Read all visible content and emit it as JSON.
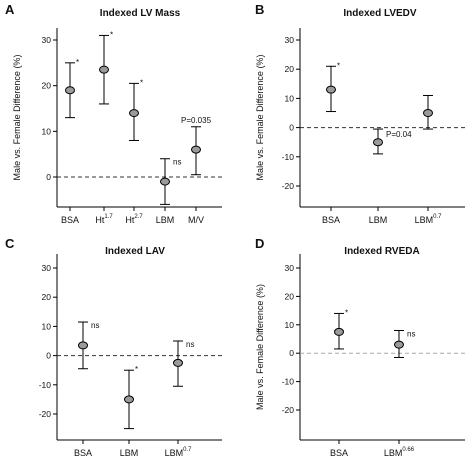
{
  "chart_data": [
    {
      "letter": "A",
      "title": "Indexed LV Mass",
      "type": "scatter",
      "ylabel": "Male vs. Female Difference (%)",
      "ylim": [
        -6,
        30
      ],
      "yticks": [
        0,
        10,
        20,
        30
      ],
      "categories": [
        {
          "label": "BSA",
          "sup": ""
        },
        {
          "label": "Ht",
          "sup": "1.7"
        },
        {
          "label": "Ht",
          "sup": "2.7"
        },
        {
          "label": "LBM",
          "sup": ""
        },
        {
          "label": "M/V",
          "sup": ""
        }
      ],
      "points": [
        {
          "y": 19,
          "low": 13,
          "high": 25,
          "ann": "*"
        },
        {
          "y": 23.5,
          "low": 16,
          "high": 31,
          "ann": "*"
        },
        {
          "y": 14,
          "low": 8,
          "high": 20.5,
          "ann": "*"
        },
        {
          "y": -1,
          "low": -6,
          "high": 4,
          "ann": "ns"
        },
        {
          "y": 6,
          "low": 0.5,
          "high": 11,
          "ann": "P=0.035"
        }
      ]
    },
    {
      "letter": "B",
      "title": "Indexed LVEDV",
      "type": "scatter",
      "ylabel": "Male vs. Female Difference (%)",
      "ylim": [
        -28,
        30
      ],
      "yticks": [
        -20,
        -10,
        0,
        10,
        20,
        30
      ],
      "categories": [
        {
          "label": "BSA",
          "sup": ""
        },
        {
          "label": "LBM",
          "sup": ""
        },
        {
          "label": "LBM",
          "sup": "0.7"
        }
      ],
      "points": [
        {
          "y": 13,
          "low": 5.5,
          "high": 21,
          "ann": "*"
        },
        {
          "y": -5,
          "low": -9,
          "high": -0.5,
          "ann": "P=0.04"
        },
        {
          "y": 5,
          "low": -0.5,
          "high": 11,
          "ann": ""
        }
      ]
    },
    {
      "letter": "C",
      "title": "Indexed LAV",
      "type": "scatter",
      "ylabel": "",
      "ylim": [
        -28,
        30
      ],
      "yticks": [
        -20,
        -10,
        0,
        10,
        20,
        30
      ],
      "categories": [
        {
          "label": "BSA",
          "sup": ""
        },
        {
          "label": "LBM",
          "sup": ""
        },
        {
          "label": "LBM",
          "sup": "0.7"
        }
      ],
      "points": [
        {
          "y": 3.5,
          "low": -4.5,
          "high": 11.5,
          "ann": "ns"
        },
        {
          "y": -15,
          "low": -25,
          "high": -5,
          "ann": "*"
        },
        {
          "y": -2.5,
          "low": -10.5,
          "high": 5,
          "ann": "ns"
        }
      ]
    },
    {
      "letter": "D",
      "title": "Indexed RVEDA",
      "type": "scatter",
      "ylabel": "Male vs. Female Difference (%)",
      "ylim": [
        -28,
        30
      ],
      "yticks": [
        -20,
        -10,
        0,
        10,
        20,
        30
      ],
      "categories": [
        {
          "label": "BSA",
          "sup": ""
        },
        {
          "label": "LBM",
          "sup": "0.66"
        }
      ],
      "points": [
        {
          "y": 7.5,
          "low": 1.5,
          "high": 14,
          "ann": "*"
        },
        {
          "y": 3,
          "low": -1.5,
          "high": 8,
          "ann": "ns"
        }
      ]
    }
  ]
}
